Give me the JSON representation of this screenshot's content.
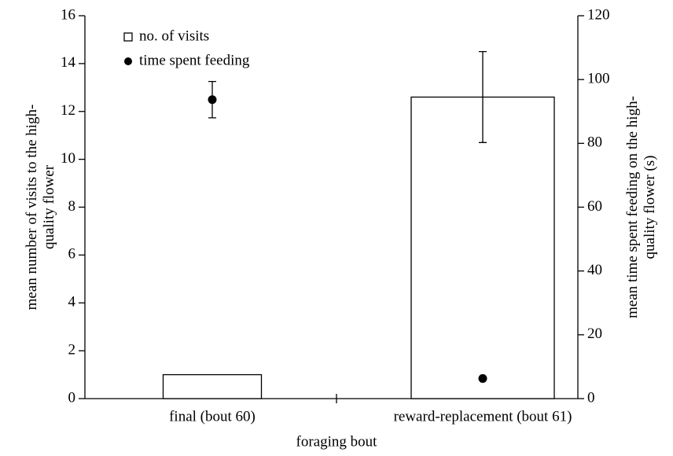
{
  "chart_data": {
    "type": "bar",
    "categories": [
      "final (bout 60)",
      "reward-replacement (bout 61)"
    ],
    "xlabel": "foraging bout",
    "ylabel": [
      "mean number of visits to the high-",
      "quality flower"
    ],
    "y2label": [
      "mean time spent feeding on the high-",
      "quality flower (s)"
    ],
    "ylim": [
      0,
      16
    ],
    "yticks": [
      0,
      2,
      4,
      6,
      8,
      10,
      12,
      14,
      16
    ],
    "y2lim": [
      0,
      120
    ],
    "y2ticks": [
      0,
      20,
      40,
      60,
      80,
      100,
      120
    ],
    "legend": "upper left",
    "series": [
      {
        "name": "no. of visits",
        "type": "bar",
        "color": "#ffffff",
        "values": [
          1.0,
          12.6
        ],
        "errors": [
          null,
          1.9
        ]
      },
      {
        "name": "time spent feeding",
        "type": "scatter",
        "axis": "y2",
        "color": "#000000",
        "values": [
          93.7,
          6.3
        ],
        "errors": [
          5.7,
          null
        ]
      }
    ]
  }
}
